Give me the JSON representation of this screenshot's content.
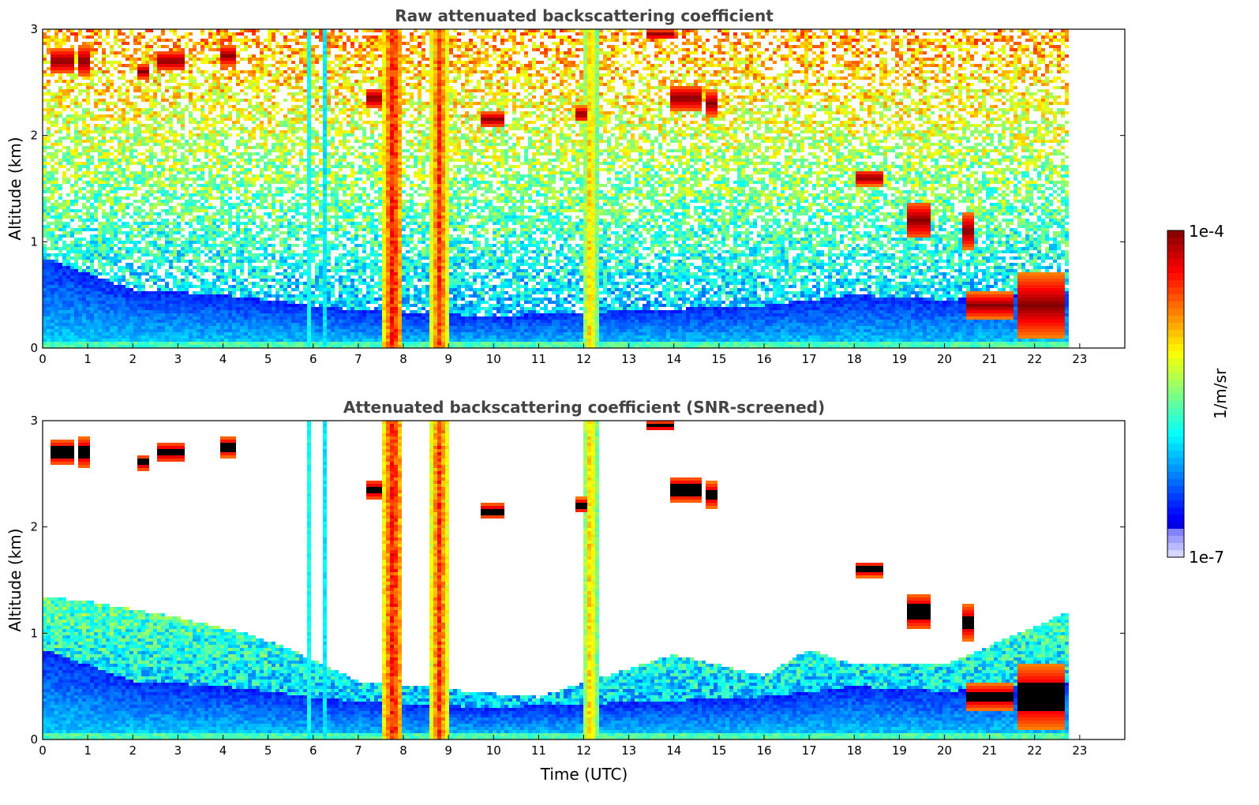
{
  "colors": {
    "jet": [
      "#00008f",
      "#0000ff",
      "#0080ff",
      "#00ffff",
      "#80ff80",
      "#ffff00",
      "#ff8000",
      "#ff0000",
      "#800000"
    ],
    "cloud_dark": "#000000"
  },
  "chart_data": [
    {
      "type": "heatmap",
      "title": "Raw attenuated backscattering coefficient",
      "ylabel": "Altitude (km)",
      "xlabel": "",
      "xlim": [
        0,
        24
      ],
      "ylim": [
        0,
        3
      ],
      "x_ticks": [
        "0",
        "1",
        "2",
        "3",
        "4",
        "5",
        "6",
        "7",
        "8",
        "9",
        "10",
        "11",
        "12",
        "13",
        "14",
        "15",
        "16",
        "17",
        "18",
        "19",
        "20",
        "21",
        "22",
        "23"
      ],
      "y_ticks": [
        "0",
        "1",
        "2",
        "3"
      ],
      "data_end_utc": 22.75,
      "boundary_layer_top_km": [
        [
          0,
          0.85
        ],
        [
          2,
          0.55
        ],
        [
          4,
          0.5
        ],
        [
          7,
          0.35
        ],
        [
          10,
          0.3
        ],
        [
          13,
          0.35
        ],
        [
          16,
          0.4
        ],
        [
          18,
          0.5
        ],
        [
          20,
          0.45
        ],
        [
          22.75,
          0.55
        ]
      ],
      "vertical_columns": [
        {
          "t_utc": 7.55,
          "width_h": 0.45,
          "level": 0.95
        },
        {
          "t_utc": 8.6,
          "width_h": 0.4,
          "level": 0.9
        },
        {
          "t_utc": 12.0,
          "width_h": 0.3,
          "level": 0.75
        },
        {
          "t_utc": 5.9,
          "width_h": 0.08,
          "level": 0.55
        },
        {
          "t_utc": 6.25,
          "width_h": 0.08,
          "level": 0.5
        }
      ],
      "cloud_patches": [
        {
          "t_utc": 0.2,
          "alt_km": 2.7,
          "dur_h": 0.5,
          "thick_km": 0.25
        },
        {
          "t_utc": 0.75,
          "alt_km": 2.7,
          "dur_h": 0.3,
          "thick_km": 0.3
        },
        {
          "t_utc": 2.1,
          "alt_km": 2.6,
          "dur_h": 0.3,
          "thick_km": 0.15
        },
        {
          "t_utc": 2.55,
          "alt_km": 2.7,
          "dur_h": 0.6,
          "thick_km": 0.2
        },
        {
          "t_utc": 3.9,
          "alt_km": 2.75,
          "dur_h": 0.35,
          "thick_km": 0.2
        },
        {
          "t_utc": 7.15,
          "alt_km": 2.35,
          "dur_h": 0.4,
          "thick_km": 0.2
        },
        {
          "t_utc": 9.7,
          "alt_km": 2.15,
          "dur_h": 0.5,
          "thick_km": 0.15
        },
        {
          "t_utc": 11.85,
          "alt_km": 2.2,
          "dur_h": 0.2,
          "thick_km": 0.15
        },
        {
          "t_utc": 13.4,
          "alt_km": 2.95,
          "dur_h": 0.6,
          "thick_km": 0.1
        },
        {
          "t_utc": 13.9,
          "alt_km": 2.35,
          "dur_h": 0.7,
          "thick_km": 0.25
        },
        {
          "t_utc": 14.7,
          "alt_km": 2.3,
          "dur_h": 0.3,
          "thick_km": 0.25
        },
        {
          "t_utc": 18.05,
          "alt_km": 1.6,
          "dur_h": 0.6,
          "thick_km": 0.15
        },
        {
          "t_utc": 19.2,
          "alt_km": 1.2,
          "dur_h": 0.5,
          "thick_km": 0.35
        },
        {
          "t_utc": 20.4,
          "alt_km": 1.1,
          "dur_h": 0.3,
          "thick_km": 0.35
        },
        {
          "t_utc": 21.6,
          "alt_km": 0.4,
          "dur_h": 1.1,
          "thick_km": 0.6
        },
        {
          "t_utc": 20.5,
          "alt_km": 0.4,
          "dur_h": 1.0,
          "thick_km": 0.25
        }
      ]
    },
    {
      "type": "heatmap",
      "title": "Attenuated backscattering coefficient (SNR-screened)",
      "ylabel": "Altitude (km)",
      "xlabel": "Time (UTC)",
      "xlim": [
        0,
        24
      ],
      "ylim": [
        0,
        3
      ],
      "x_ticks": [
        "0",
        "1",
        "2",
        "3",
        "4",
        "5",
        "6",
        "7",
        "8",
        "9",
        "10",
        "11",
        "12",
        "13",
        "14",
        "15",
        "16",
        "17",
        "18",
        "19",
        "20",
        "21",
        "22",
        "23"
      ],
      "y_ticks": [
        "0",
        "1",
        "2",
        "3"
      ],
      "screened_layer_top_km": [
        [
          0,
          1.35
        ],
        [
          1,
          1.3
        ],
        [
          3,
          1.15
        ],
        [
          4.5,
          1.0
        ],
        [
          5.5,
          0.85
        ],
        [
          7,
          0.55
        ],
        [
          8.5,
          0.5
        ],
        [
          9.5,
          0.45
        ],
        [
          11,
          0.4
        ],
        [
          12.5,
          0.6
        ],
        [
          14,
          0.8
        ],
        [
          16,
          0.6
        ],
        [
          17,
          0.85
        ],
        [
          18,
          0.7
        ],
        [
          20,
          0.7
        ],
        [
          22.75,
          1.2
        ]
      ]
    }
  ],
  "colorbar": {
    "max_label": "1e-4",
    "min_label": "1e-7",
    "unit_label": "1/m/sr"
  }
}
